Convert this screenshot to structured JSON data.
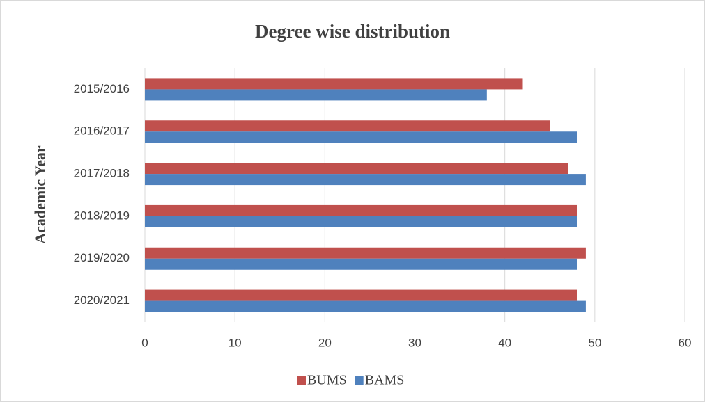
{
  "chart_data": {
    "type": "barh",
    "title": "Degree wise distribution",
    "y_label": "Academic Year",
    "categories": [
      "2015/2016",
      "2016/2017",
      "2017/2018",
      "2018/2019",
      "2019/2020",
      "2020/2021"
    ],
    "series": [
      {
        "name": "BUMS",
        "color": "#c0504d",
        "values": [
          42,
          45,
          47,
          48,
          49,
          48
        ]
      },
      {
        "name": "BAMS",
        "color": "#4f81bd",
        "values": [
          38,
          48,
          49,
          48,
          48,
          49
        ]
      }
    ],
    "xlim": [
      0,
      60
    ],
    "xticks": [
      0,
      10,
      20,
      30,
      40,
      50,
      60
    ],
    "grid": true,
    "legend": "bottom"
  }
}
